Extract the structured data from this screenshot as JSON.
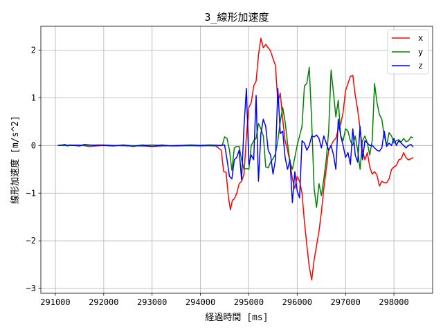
{
  "chart_data": {
    "type": "line",
    "title": "3_線形加速度",
    "xlabel": "経過時間 [ms]",
    "ylabel": "線形加速度 [m/s^2]",
    "xlim": [
      290700,
      298800
    ],
    "ylim": [
      -3.1,
      2.5
    ],
    "xticks": [
      291000,
      292000,
      293000,
      294000,
      295000,
      296000,
      297000,
      298000
    ],
    "xtick_labels": [
      "291000",
      "292000",
      "293000",
      "294000",
      "295000",
      "296000",
      "297000",
      "298000"
    ],
    "yticks": [
      -3,
      -2,
      -1,
      0,
      1,
      2
    ],
    "ytick_labels": [
      "−3",
      "−2",
      "−1",
      "0",
      "1",
      "2"
    ],
    "grid": true,
    "legend_position": "top-right",
    "series": [
      {
        "name": "x",
        "color": "#ff0000",
        "x": [
          291050,
          291500,
          291700,
          292000,
          292500,
          293000,
          293500,
          294000,
          294300,
          294430,
          294480,
          294530,
          294580,
          294620,
          294660,
          294700,
          294750,
          294800,
          294850,
          294900,
          294950,
          295000,
          295050,
          295100,
          295150,
          295200,
          295250,
          295300,
          295350,
          295400,
          295450,
          295500,
          295550,
          295600,
          295650,
          295700,
          295750,
          295800,
          295850,
          295900,
          295950,
          296000,
          296050,
          296100,
          296150,
          296200,
          296250,
          296300,
          296350,
          296400,
          296450,
          296500,
          296550,
          296600,
          296650,
          296700,
          296750,
          296800,
          296850,
          296900,
          296950,
          297000,
          297050,
          297100,
          297150,
          297200,
          297250,
          297300,
          297350,
          297400,
          297450,
          297500,
          297550,
          297600,
          297650,
          297700,
          297750,
          297800,
          297850,
          297900,
          297950,
          298000,
          298050,
          298100,
          298150,
          298200,
          298250,
          298300,
          298350,
          298400
        ],
        "y": [
          0.0,
          0.01,
          -0.02,
          0.0,
          0.0,
          -0.02,
          0.0,
          -0.01,
          0.0,
          -0.1,
          -0.55,
          -0.56,
          -1.1,
          -1.35,
          -1.15,
          -1.12,
          -1.0,
          -0.8,
          -0.75,
          -0.6,
          0.2,
          0.8,
          0.9,
          1.25,
          1.35,
          1.9,
          2.25,
          2.05,
          2.12,
          2.05,
          1.98,
          1.82,
          1.68,
          0.9,
          1.1,
          0.55,
          0.1,
          -0.1,
          -0.35,
          -0.7,
          -0.9,
          -0.65,
          -0.75,
          -1.0,
          -1.6,
          -2.1,
          -2.55,
          -2.82,
          -2.4,
          -2.1,
          -1.8,
          -1.4,
          -0.9,
          -0.5,
          -0.1,
          0.0,
          0.1,
          0.15,
          0.35,
          0.45,
          0.7,
          1.15,
          1.3,
          1.45,
          1.47,
          1.05,
          0.75,
          0.35,
          -0.1,
          -0.3,
          -0.15,
          -0.45,
          -0.6,
          -0.55,
          -0.62,
          -0.85,
          -0.75,
          -0.78,
          -0.78,
          -0.7,
          -0.5,
          -0.45,
          -0.42,
          -0.3,
          -0.28,
          -0.15,
          -0.26,
          -0.3,
          -0.28,
          -0.25
        ]
      },
      {
        "name": "y",
        "color": "#008000",
        "x": [
          291050,
          291500,
          292000,
          292500,
          293000,
          293500,
          294000,
          294300,
          294450,
          294500,
          294550,
          294600,
          294650,
          294700,
          294750,
          294800,
          294850,
          294900,
          294950,
          295000,
          295050,
          295100,
          295150,
          295200,
          295250,
          295300,
          295350,
          295400,
          295450,
          295500,
          295550,
          295600,
          295650,
          295700,
          295750,
          295800,
          295850,
          295900,
          295950,
          296000,
          296050,
          296100,
          296150,
          296200,
          296250,
          296300,
          296350,
          296400,
          296450,
          296500,
          296550,
          296600,
          296650,
          296700,
          296750,
          296800,
          296850,
          296900,
          296950,
          297000,
          297050,
          297100,
          297150,
          297200,
          297250,
          297300,
          297350,
          297400,
          297450,
          297500,
          297550,
          297600,
          297650,
          297700,
          297750,
          297800,
          297850,
          297900,
          297950,
          298000,
          298050,
          298100,
          298150,
          298200,
          298250,
          298300,
          298350,
          298400
        ],
        "y": [
          0.0,
          0.0,
          0.01,
          -0.01,
          0.01,
          -0.01,
          0.0,
          -0.01,
          0.0,
          0.18,
          0.15,
          -0.1,
          -0.52,
          -0.05,
          -0.02,
          -0.02,
          -0.3,
          -0.5,
          -0.48,
          -0.5,
          0.0,
          0.1,
          0.15,
          0.46,
          0.35,
          0.2,
          -0.45,
          -0.47,
          -0.35,
          -0.28,
          -0.18,
          0.1,
          0.5,
          0.8,
          0.5,
          0.05,
          -0.35,
          -0.5,
          -0.25,
          0.0,
          0.2,
          0.4,
          1.25,
          1.3,
          1.64,
          0.5,
          -0.9,
          -1.3,
          -0.8,
          -1.05,
          -0.7,
          -0.3,
          0.3,
          1.58,
          1.1,
          0.6,
          0.95,
          0.2,
          0.1,
          0.35,
          0.3,
          0.1,
          0.0,
          0.2,
          -0.1,
          -0.5,
          0.1,
          0.2,
          0.05,
          -0.2,
          0.1,
          1.3,
          0.9,
          0.65,
          0.55,
          0.2,
          0.0,
          0.27,
          0.2,
          0.05,
          0.1,
          0.12,
          0.07,
          0.15,
          0.08,
          0.1,
          0.18,
          0.16
        ]
      },
      {
        "name": "z",
        "color": "#0000ff",
        "x": [
          291050,
          291150,
          291200,
          291250,
          291300,
          291400,
          291500,
          291600,
          291700,
          291800,
          291900,
          292000,
          292200,
          292400,
          292500,
          292600,
          292800,
          293000,
          293200,
          293400,
          293600,
          293800,
          294000,
          294200,
          294400,
          294500,
          294550,
          294600,
          294650,
          294700,
          294750,
          294800,
          294850,
          294900,
          294950,
          295000,
          295050,
          295100,
          295150,
          295200,
          295250,
          295300,
          295350,
          295400,
          295450,
          295500,
          295550,
          295600,
          295650,
          295700,
          295750,
          295800,
          295850,
          295900,
          295950,
          296000,
          296050,
          296100,
          296150,
          296200,
          296250,
          296300,
          296350,
          296400,
          296450,
          296500,
          296550,
          296600,
          296650,
          296700,
          296750,
          296800,
          296850,
          296900,
          296950,
          297000,
          297050,
          297100,
          297150,
          297200,
          297250,
          297300,
          297350,
          297400,
          297450,
          297500,
          297550,
          297600,
          297650,
          297700,
          297750,
          297800,
          297850,
          297900,
          297950,
          298000,
          298050,
          298100,
          298150,
          298200,
          298250,
          298300,
          298350,
          298400
        ],
        "y": [
          0.0,
          0.01,
          0.02,
          -0.01,
          0.01,
          0.0,
          -0.01,
          0.02,
          0.01,
          0.0,
          0.01,
          0.0,
          -0.01,
          0.01,
          0.0,
          -0.02,
          0.01,
          -0.02,
          0.01,
          -0.01,
          0.0,
          0.01,
          0.0,
          0.01,
          0.0,
          0.01,
          -0.3,
          -0.65,
          -0.7,
          -0.3,
          -0.25,
          -0.1,
          -0.72,
          0.4,
          1.2,
          -0.4,
          -0.2,
          -0.3,
          1.05,
          -0.75,
          0.25,
          0.55,
          0.4,
          -0.1,
          -0.2,
          -0.6,
          -0.3,
          1.2,
          0.25,
          0.3,
          -0.25,
          -0.5,
          -0.3,
          -1.2,
          -0.55,
          -0.95,
          -1.1,
          0.1,
          0.05,
          -0.1,
          0.0,
          0.2,
          0.18,
          0.22,
          0.15,
          -0.05,
          0.2,
          0.05,
          -0.1,
          0.0,
          -0.2,
          -0.5,
          0.55,
          0.2,
          0.0,
          -0.25,
          -0.15,
          -0.4,
          0.35,
          -0.2,
          -0.35,
          0.4,
          -0.3,
          0.1,
          0.05,
          0.0,
          0.0,
          -0.05,
          -0.1,
          -0.12,
          -0.05,
          0.3,
          -0.02,
          0.05,
          0.0,
          0.15,
          0.0,
          0.1,
          0.05,
          0.0,
          -0.05,
          0.0,
          0.02,
          -0.03
        ]
      }
    ]
  }
}
